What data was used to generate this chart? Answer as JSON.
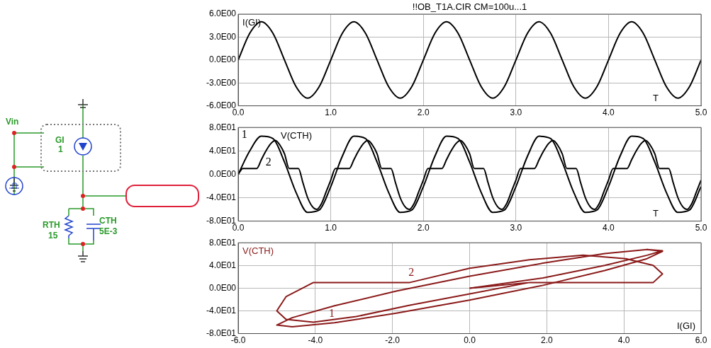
{
  "chart_data": [
    {
      "type": "other",
      "annotations": [
        "Vin",
        "GI",
        "1",
        "RTH",
        "15",
        "CTH",
        "5E-3"
      ]
    },
    {
      "type": "line",
      "title": "!!OB_T1A.CIR CM=100u...1",
      "ylabel": "I(GI)",
      "xlabel": "T",
      "grid": true,
      "xlim": [
        0,
        5
      ],
      "xticks": [
        {
          "value": 0,
          "label": "0.0"
        },
        {
          "value": 1,
          "label": "1.0"
        },
        {
          "value": 2,
          "label": "2.0"
        },
        {
          "value": 3,
          "label": "3.0"
        },
        {
          "value": 4,
          "label": "4.0"
        },
        {
          "value": 5,
          "label": "5.0"
        }
      ],
      "ylim": [
        -6,
        6
      ],
      "yticks": [
        {
          "value": -6,
          "label": "-6.0E00"
        },
        {
          "value": -3,
          "label": "-3.0E00"
        },
        {
          "value": 0,
          "label": "0.0E00"
        },
        {
          "value": 3,
          "label": "3.0E00"
        },
        {
          "value": 6,
          "label": "6.0E00"
        }
      ],
      "x": [
        0,
        0.125,
        0.25,
        0.375,
        0.5,
        0.625,
        0.75,
        0.875,
        1,
        1.125,
        1.25,
        1.375,
        1.5,
        1.625,
        1.75,
        1.875,
        2,
        2.125,
        2.25,
        2.375,
        2.5,
        2.625,
        2.75,
        2.875,
        3,
        3.125,
        3.25,
        3.375,
        3.5,
        3.625,
        3.75,
        3.875,
        4,
        4.125,
        4.25,
        4.375,
        4.5,
        4.625,
        4.75,
        4.875,
        5
      ],
      "series": [
        {
          "color": "#000000",
          "values": [
            0,
            3.5,
            5,
            3.5,
            0,
            -3.5,
            -5,
            -3.5,
            0,
            3.5,
            5,
            3.5,
            0,
            -3.5,
            -5,
            -3.5,
            0,
            3.5,
            5,
            3.5,
            0,
            -3.5,
            -5,
            -3.5,
            0,
            3.5,
            5,
            3.5,
            0,
            -3.5,
            -5,
            -3.5,
            0,
            3.5,
            5,
            3.5,
            0,
            -3.5,
            -5,
            -3.5,
            0
          ]
        }
      ]
    },
    {
      "type": "line",
      "ylabel": "V(CTH)",
      "xlabel": "T",
      "grid": true,
      "xlim": [
        0,
        5
      ],
      "xticks": [
        {
          "value": 0,
          "label": "0.0"
        },
        {
          "value": 1,
          "label": "1.0"
        },
        {
          "value": 2,
          "label": "2.0"
        },
        {
          "value": 3,
          "label": "3.0"
        },
        {
          "value": 4,
          "label": "4.0"
        },
        {
          "value": 5,
          "label": "5.0"
        }
      ],
      "ylim": [
        -80,
        80
      ],
      "yticks": [
        {
          "value": -80,
          "label": "-8.0E01"
        },
        {
          "value": -40,
          "label": "-4.0E01"
        },
        {
          "value": 0,
          "label": "0.0E00"
        },
        {
          "value": 40,
          "label": "4.0E01"
        },
        {
          "value": 80,
          "label": "8.0E01"
        }
      ],
      "series": [
        {
          "name": "1",
          "color": "#000000",
          "x": [
            0,
            0.125,
            0.25,
            0.375,
            0.5,
            0.625,
            0.75,
            0.875,
            1,
            1.125,
            1.25,
            1.375,
            1.5,
            1.625,
            1.75,
            1.875,
            2,
            2.125,
            2.25,
            2.375,
            2.5,
            2.625,
            2.75,
            2.875,
            3,
            3.125,
            3.25,
            3.375,
            3.5,
            3.625,
            3.75,
            3.875,
            4,
            4.125,
            4.25,
            4.375,
            4.5,
            4.625,
            4.75,
            4.875,
            5
          ],
          "values": [
            0,
            40,
            65,
            61,
            21,
            -31,
            -65,
            -61,
            -21,
            31,
            65,
            61,
            21,
            -31,
            -65,
            -61,
            -21,
            31,
            65,
            61,
            21,
            -31,
            -65,
            -61,
            -21,
            31,
            65,
            61,
            21,
            -31,
            -65,
            -61,
            -21,
            31,
            65,
            61,
            21,
            -31,
            -65,
            -61,
            -21
          ]
        },
        {
          "name": "2",
          "color": "#000000",
          "x": [
            0,
            0.05,
            0.2,
            0.25,
            0.3,
            0.35,
            0.4,
            0.45,
            0.5,
            0.55,
            0.65,
            0.7,
            0.75,
            0.8,
            0.85,
            0.9,
            0.95,
            1,
            1.05,
            1.2,
            1.25,
            1.3,
            1.35,
            1.4,
            1.45,
            1.5,
            1.55,
            1.65,
            1.7,
            1.75,
            1.8,
            1.85,
            1.9,
            1.95,
            2,
            2.05,
            2.2,
            2.25,
            2.3,
            2.35,
            2.4,
            2.45,
            2.5,
            2.55,
            2.65,
            2.7,
            2.75,
            2.8,
            2.85,
            2.9,
            2.95,
            3,
            3.05,
            3.2,
            3.25,
            3.3,
            3.35,
            3.4,
            3.45,
            3.5,
            3.55,
            3.65,
            3.7,
            3.75,
            3.8,
            3.85,
            3.9,
            3.95,
            4,
            4.05,
            4.2,
            4.25,
            4.3,
            4.35,
            4.4,
            4.45,
            4.5,
            4.55,
            4.65,
            4.7,
            4.75,
            4.8,
            4.85,
            4.9,
            4.95,
            5
          ],
          "values": [
            0,
            10,
            10,
            25,
            40,
            52,
            58,
            50,
            35,
            10,
            10,
            -15,
            -40,
            -55,
            -60,
            -50,
            -30,
            -10,
            10,
            10,
            25,
            40,
            52,
            58,
            50,
            35,
            10,
            10,
            -15,
            -40,
            -55,
            -60,
            -50,
            -30,
            -10,
            10,
            10,
            25,
            40,
            52,
            58,
            50,
            35,
            10,
            10,
            -15,
            -40,
            -55,
            -60,
            -50,
            -30,
            -10,
            10,
            10,
            25,
            40,
            52,
            58,
            50,
            35,
            10,
            10,
            -15,
            -40,
            -55,
            -60,
            -50,
            -30,
            -10,
            10,
            10,
            25,
            40,
            52,
            58,
            50,
            35,
            10,
            10,
            -15,
            -40,
            -55,
            -60,
            -50,
            -30,
            -10
          ]
        }
      ]
    },
    {
      "type": "line",
      "ylabel": "V(CTH)",
      "xlabel": "I(GI)",
      "grid": true,
      "xlim": [
        -6,
        6
      ],
      "xticks": [
        {
          "value": -6,
          "label": "-6.0"
        },
        {
          "value": -4,
          "label": "-4.0"
        },
        {
          "value": -2,
          "label": "-2.0"
        },
        {
          "value": 0,
          "label": "0.0"
        },
        {
          "value": 2,
          "label": "2.0"
        },
        {
          "value": 4,
          "label": "4.0"
        },
        {
          "value": 6,
          "label": "6.0"
        }
      ],
      "ylim": [
        -80,
        80
      ],
      "yticks": [
        {
          "value": -80,
          "label": "-8.0E01"
        },
        {
          "value": -40,
          "label": "-4.0E01"
        },
        {
          "value": 0,
          "label": "0.0E00"
        },
        {
          "value": 40,
          "label": "4.0E01"
        },
        {
          "value": 80,
          "label": "8.0E01"
        }
      ],
      "series": [
        {
          "name": "1",
          "color": "#8b1a1a",
          "x": [
            0,
            1.9,
            3.5,
            4.6,
            5,
            4.6,
            3.5,
            1.9,
            0,
            -1.9,
            -3.5,
            -4.6,
            -5,
            -4.6,
            -3.5,
            -1.9,
            0,
            1.9,
            3.5,
            4.6,
            5,
            4.6
          ],
          "values": [
            0,
            18,
            40,
            58,
            66,
            68,
            61,
            44,
            21,
            -5,
            -31,
            -52,
            -65,
            -68,
            -61,
            -44,
            -21,
            5,
            31,
            52,
            65,
            68
          ]
        },
        {
          "name": "2",
          "color": "#8b1a1a",
          "x": [
            0,
            1.55,
            4.76,
            5,
            4.76,
            4.05,
            2.94,
            1.55,
            0,
            -1.55,
            -4.05,
            -4.76,
            -5,
            -4.76,
            -4.05,
            -2.94,
            -1.55,
            0,
            1.55,
            4.76,
            5,
            4.76,
            4.05,
            2.94
          ],
          "values": [
            0,
            10,
            10,
            25,
            40,
            52,
            58,
            50,
            35,
            10,
            10,
            -15,
            -40,
            -55,
            -60,
            -50,
            -30,
            -10,
            10,
            10,
            25,
            40,
            52,
            58
          ]
        }
      ]
    }
  ]
}
